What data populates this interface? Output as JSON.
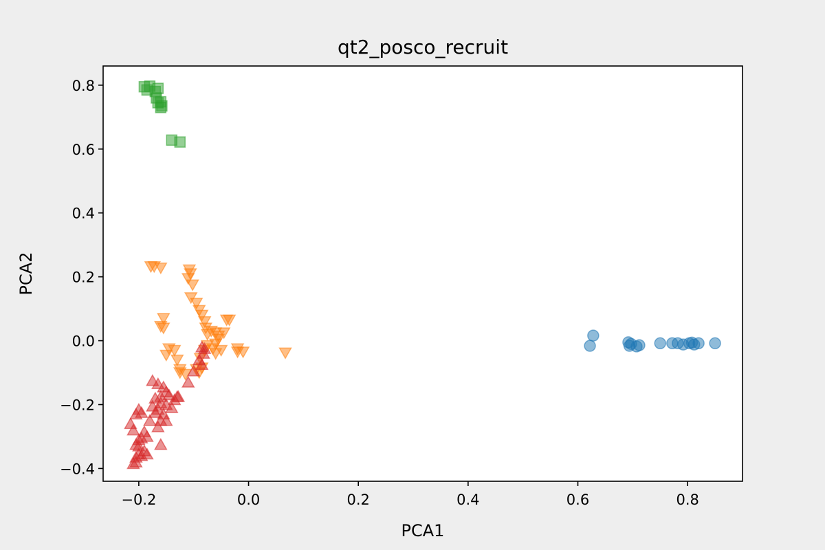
{
  "chart_data": {
    "type": "scatter",
    "title": "qt2_posco_recruit",
    "xlabel": "PCA1",
    "ylabel": "PCA2",
    "xlim": [
      -0.265,
      0.9
    ],
    "ylim": [
      -0.44,
      0.86
    ],
    "xticks": [
      -0.2,
      0.0,
      0.2,
      0.4,
      0.6,
      0.8
    ],
    "yticks": [
      -0.4,
      -0.2,
      0.0,
      0.2,
      0.4,
      0.6,
      0.8
    ],
    "xtick_labels": [
      "−0.2",
      "0.0",
      "0.2",
      "0.4",
      "0.6",
      "0.8"
    ],
    "ytick_labels": [
      "−0.4",
      "−0.2",
      "0.0",
      "0.2",
      "0.4",
      "0.6",
      "0.8"
    ],
    "grid": false,
    "legend": "none",
    "series": [
      {
        "marker": "circle",
        "color": "#1f77b4",
        "points": [
          [
            0.622,
            -0.016
          ],
          [
            0.628,
            0.016
          ],
          [
            0.692,
            -0.005
          ],
          [
            0.694,
            -0.016
          ],
          [
            0.697,
            -0.01
          ],
          [
            0.707,
            -0.018
          ],
          [
            0.712,
            -0.014
          ],
          [
            0.75,
            -0.008
          ],
          [
            0.772,
            -0.008
          ],
          [
            0.782,
            -0.008
          ],
          [
            0.792,
            -0.012
          ],
          [
            0.803,
            -0.008
          ],
          [
            0.808,
            -0.006
          ],
          [
            0.812,
            -0.012
          ],
          [
            0.82,
            -0.008
          ],
          [
            0.85,
            -0.008
          ]
        ]
      },
      {
        "marker": "triangle-down",
        "color": "#ff7f0e",
        "points": [
          [
            -0.178,
            0.232
          ],
          [
            -0.172,
            0.232
          ],
          [
            -0.16,
            0.228
          ],
          [
            -0.108,
            0.222
          ],
          [
            -0.106,
            0.21
          ],
          [
            -0.11,
            0.195
          ],
          [
            -0.102,
            0.175
          ],
          [
            -0.105,
            0.135
          ],
          [
            -0.095,
            0.118
          ],
          [
            -0.09,
            0.095
          ],
          [
            -0.085,
            0.08
          ],
          [
            -0.155,
            0.07
          ],
          [
            -0.16,
            0.045
          ],
          [
            -0.155,
            0.04
          ],
          [
            -0.08,
            0.06
          ],
          [
            -0.078,
            0.04
          ],
          [
            -0.075,
            0.02
          ],
          [
            -0.068,
            0.03
          ],
          [
            -0.06,
            0.025
          ],
          [
            -0.055,
            0.015
          ],
          [
            -0.055,
            0.005
          ],
          [
            -0.06,
            -0.01
          ],
          [
            -0.065,
            -0.025
          ],
          [
            -0.05,
            -0.03
          ],
          [
            -0.06,
            -0.04
          ],
          [
            -0.045,
            0.025
          ],
          [
            -0.035,
            0.065
          ],
          [
            -0.04,
            0.065
          ],
          [
            -0.02,
            -0.025
          ],
          [
            -0.02,
            -0.035
          ],
          [
            -0.01,
            -0.035
          ],
          [
            0.067,
            -0.038
          ],
          [
            -0.145,
            -0.025
          ],
          [
            -0.135,
            -0.03
          ],
          [
            -0.13,
            -0.06
          ],
          [
            -0.15,
            -0.045
          ],
          [
            -0.125,
            -0.09
          ],
          [
            -0.125,
            -0.1
          ],
          [
            -0.115,
            -0.105
          ],
          [
            -0.095,
            -0.09
          ],
          [
            -0.09,
            -0.1
          ],
          [
            -0.085,
            -0.085
          ],
          [
            -0.088,
            -0.055
          ],
          [
            -0.08,
            -0.03
          ],
          [
            -0.075,
            -0.015
          ]
        ]
      },
      {
        "marker": "square",
        "color": "#2ca02c",
        "points": [
          [
            -0.19,
            0.795
          ],
          [
            -0.18,
            0.797
          ],
          [
            -0.185,
            0.785
          ],
          [
            -0.17,
            0.78
          ],
          [
            -0.165,
            0.79
          ],
          [
            -0.168,
            0.76
          ],
          [
            -0.165,
            0.745
          ],
          [
            -0.16,
            0.748
          ],
          [
            -0.158,
            0.735
          ],
          [
            -0.16,
            0.73
          ],
          [
            -0.14,
            0.628
          ],
          [
            -0.125,
            0.622
          ]
        ]
      },
      {
        "marker": "triangle-up",
        "color": "#d62728",
        "points": [
          [
            -0.085,
            -0.02
          ],
          [
            -0.08,
            -0.025
          ],
          [
            -0.082,
            -0.04
          ],
          [
            -0.09,
            -0.06
          ],
          [
            -0.085,
            -0.075
          ],
          [
            -0.1,
            -0.095
          ],
          [
            -0.11,
            -0.13
          ],
          [
            -0.175,
            -0.125
          ],
          [
            -0.165,
            -0.135
          ],
          [
            -0.155,
            -0.145
          ],
          [
            -0.15,
            -0.16
          ],
          [
            -0.16,
            -0.175
          ],
          [
            -0.17,
            -0.18
          ],
          [
            -0.145,
            -0.17
          ],
          [
            -0.13,
            -0.175
          ],
          [
            -0.135,
            -0.185
          ],
          [
            -0.128,
            -0.175
          ],
          [
            -0.14,
            -0.21
          ],
          [
            -0.15,
            -0.2
          ],
          [
            -0.16,
            -0.195
          ],
          [
            -0.165,
            -0.215
          ],
          [
            -0.175,
            -0.205
          ],
          [
            -0.17,
            -0.225
          ],
          [
            -0.155,
            -0.23
          ],
          [
            -0.2,
            -0.215
          ],
          [
            -0.195,
            -0.225
          ],
          [
            -0.205,
            -0.23
          ],
          [
            -0.18,
            -0.25
          ],
          [
            -0.16,
            -0.25
          ],
          [
            -0.15,
            -0.25
          ],
          [
            -0.165,
            -0.27
          ],
          [
            -0.215,
            -0.26
          ],
          [
            -0.21,
            -0.28
          ],
          [
            -0.19,
            -0.285
          ],
          [
            -0.185,
            -0.3
          ],
          [
            -0.2,
            -0.31
          ],
          [
            -0.195,
            -0.305
          ],
          [
            -0.205,
            -0.325
          ],
          [
            -0.2,
            -0.33
          ],
          [
            -0.16,
            -0.325
          ],
          [
            -0.19,
            -0.345
          ],
          [
            -0.2,
            -0.355
          ],
          [
            -0.205,
            -0.365
          ],
          [
            -0.195,
            -0.36
          ],
          [
            -0.185,
            -0.355
          ],
          [
            -0.205,
            -0.38
          ],
          [
            -0.21,
            -0.385
          ]
        ]
      }
    ]
  }
}
